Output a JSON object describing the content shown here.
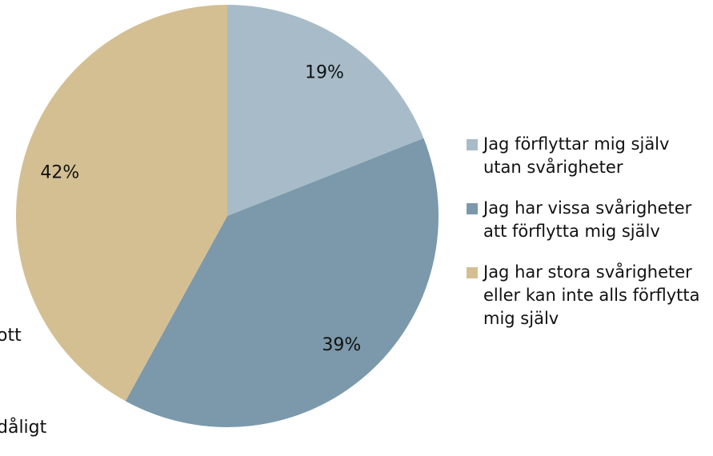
{
  "chart_data": {
    "type": "pie",
    "categories": [
      "Jag förflyttar mig själv utan svårigheter",
      "Jag har vissa svårigheter att förflytta mig själv",
      "Jag har stora svårigheter eller kan inte alls förflytta mig själv"
    ],
    "values": [
      19,
      39,
      42
    ],
    "value_labels": [
      "19%",
      "39%",
      "42%"
    ],
    "colors": [
      "#a7bcc8",
      "#7b99aa",
      "#d4bf93"
    ],
    "legend": "right",
    "annotations": [
      "ott",
      "dåligt"
    ]
  }
}
